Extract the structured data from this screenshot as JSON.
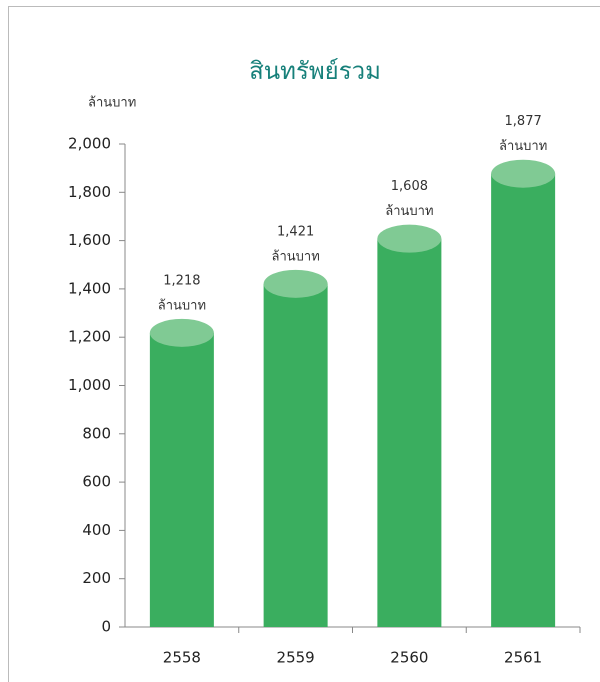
{
  "chart_data": {
    "type": "bar",
    "title": "สินทรัพย์รวม",
    "y_label": "ล้านบาท",
    "categories": [
      "2558",
      "2559",
      "2560",
      "2561"
    ],
    "values": [
      1218,
      1421,
      1608,
      1877
    ],
    "value_labels": [
      "1,218",
      "1,421",
      "1,608",
      "1,877"
    ],
    "value_unit": "ล้านบาท",
    "color": "#3aae5f",
    "top_color": "#80ca94",
    "ylim": [
      0,
      2000
    ],
    "yticks": [
      0,
      200,
      400,
      600,
      800,
      {
        "value": 1000,
        "label": "1,000"
      },
      {
        "value": 1200,
        "label": "1,200"
      },
      {
        "value": 1400,
        "label": "1,400"
      },
      {
        "value": 1600,
        "label": "1,600"
      },
      {
        "value": 1800,
        "label": "1,800"
      },
      {
        "value": 2000,
        "label": "2,000"
      }
    ]
  }
}
